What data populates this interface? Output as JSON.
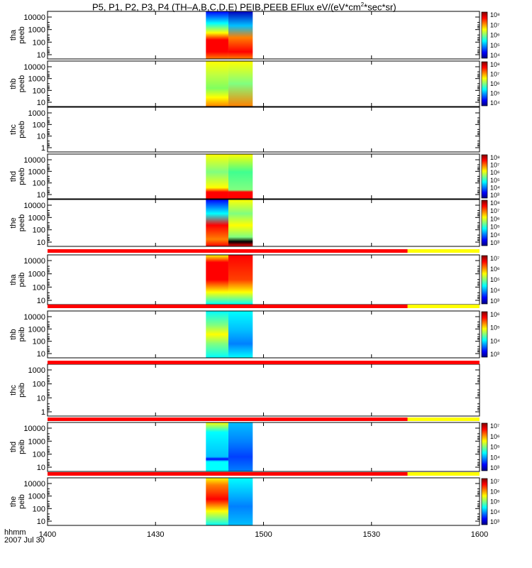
{
  "title": "P5, P1, P2, P3, P4  (TH–A,B,C,D,E)  PEIB,PEEB EFlux  eV/(eV*cm",
  "title_sup": "2",
  "title_tail": "*sec*sr)",
  "footer": {
    "time_label": "hhmm",
    "date_label": "2007 Jul 30"
  },
  "chart_data": {
    "type": "heatmap",
    "x_ticks": [
      "1400",
      "1430",
      "1500",
      "1530",
      "1600"
    ],
    "x_range_minutes": [
      0,
      120
    ],
    "data_interval_minutes": [
      44,
      57
    ],
    "panels": [
      {
        "name": "peeb",
        "probe": "tha",
        "ylabel_top": "tha",
        "ylabel_bottom": "peeb",
        "yticks": [
          "10000",
          "1000",
          "100",
          "10"
        ],
        "cbar_ticks": [
          "10⁸",
          "10⁷",
          "10⁶",
          "10⁵",
          "10⁴"
        ],
        "has_data": true,
        "profile": "tha_peeb"
      },
      {
        "name": "peeb",
        "probe": "thb",
        "ylabel_top": "thb",
        "ylabel_bottom": "peeb",
        "yticks": [
          "10000",
          "1000",
          "100",
          "10"
        ],
        "cbar_ticks": [
          "10⁸",
          "10⁷",
          "10⁶",
          "10⁵",
          "10⁴"
        ],
        "has_data": true,
        "profile": "thb_peeb"
      },
      {
        "name": "peeb",
        "probe": "thc",
        "ylabel_top": "thc",
        "ylabel_bottom": "peeb",
        "yticks": [
          "1000",
          "100",
          "10",
          "1"
        ],
        "cbar_ticks": [],
        "has_data": false,
        "profile": "none"
      },
      {
        "name": "peeb",
        "probe": "thd",
        "ylabel_top": "thd",
        "ylabel_bottom": "peeb",
        "yticks": [
          "10000",
          "1000",
          "100",
          "10"
        ],
        "cbar_ticks": [
          "10⁸",
          "10⁷",
          "10⁶",
          "10⁵",
          "10⁴",
          "10³"
        ],
        "has_data": true,
        "profile": "thd_peeb"
      },
      {
        "name": "peeb",
        "probe": "the",
        "ylabel_top": "the",
        "ylabel_bottom": "peeb",
        "yticks": [
          "10000",
          "1000",
          "100",
          "10"
        ],
        "cbar_ticks": [
          "10⁸",
          "10⁷",
          "10⁶",
          "10⁵",
          "10⁴",
          "10³"
        ],
        "has_data": true,
        "profile": "the_peeb"
      },
      {
        "name": "peib",
        "probe": "tha",
        "ylabel_top": "tha",
        "ylabel_bottom": "peib",
        "yticks": [
          "10000",
          "1000",
          "100",
          "10"
        ],
        "cbar_ticks": [
          "10⁷",
          "10⁶",
          "10⁵",
          "10⁴",
          "10³"
        ],
        "has_data": true,
        "profile": "tha_peib"
      },
      {
        "name": "peib",
        "probe": "thb",
        "ylabel_top": "thb",
        "ylabel_bottom": "peib",
        "yticks": [
          "10000",
          "1000",
          "100",
          "10"
        ],
        "cbar_ticks": [
          "10⁶",
          "10⁵",
          "10⁴",
          "10³"
        ],
        "has_data": true,
        "profile": "thb_peib"
      },
      {
        "name": "peib",
        "probe": "thc",
        "ylabel_top": "thc",
        "ylabel_bottom": "peib",
        "yticks": [
          "1000",
          "100",
          "10",
          "1"
        ],
        "cbar_ticks": [],
        "has_data": false,
        "profile": "none"
      },
      {
        "name": "peib",
        "probe": "thd",
        "ylabel_top": "thd",
        "ylabel_bottom": "peib",
        "yticks": [
          "10000",
          "1000",
          "100",
          "10"
        ],
        "cbar_ticks": [
          "10⁷",
          "10⁶",
          "10⁵",
          "10⁴",
          "10³"
        ],
        "has_data": true,
        "profile": "thd_peib"
      },
      {
        "name": "peib",
        "probe": "the",
        "ylabel_top": "the",
        "ylabel_bottom": "peib",
        "yticks": [
          "10000",
          "1000",
          "100",
          "10"
        ],
        "cbar_ticks": [
          "10⁷",
          "10⁶",
          "10⁵",
          "10⁴",
          "10³"
        ],
        "has_data": true,
        "profile": "the_peib"
      }
    ],
    "mode_bars": [
      {
        "after_panel": 4,
        "segments": [
          {
            "from": 0,
            "to": 100,
            "color": "#ff0000"
          },
          {
            "from": 100,
            "to": 120,
            "color": "#ffff00"
          }
        ]
      },
      {
        "after_panel": 5,
        "segments": [
          {
            "from": 0,
            "to": 100,
            "color": "#ff0000"
          },
          {
            "from": 100,
            "to": 120,
            "color": "#ffff00"
          }
        ]
      },
      {
        "after_panel": 6,
        "segments": [
          {
            "from": 0,
            "to": 120,
            "color": "#ff0000"
          }
        ]
      },
      {
        "after_panel": 7,
        "segments": [
          {
            "from": 0,
            "to": 100,
            "color": "#ff0000"
          },
          {
            "from": 100,
            "to": 120,
            "color": "#ffff00"
          }
        ]
      },
      {
        "after_panel": 8,
        "segments": [
          {
            "from": 0,
            "to": 100,
            "color": "#ff0000"
          },
          {
            "from": 100,
            "to": 120,
            "color": "#ffff00"
          }
        ]
      }
    ],
    "colormap": [
      "#000080",
      "#0000ff",
      "#0080ff",
      "#00ffff",
      "#80ff80",
      "#ffff00",
      "#ff8000",
      "#ff0000",
      "#800000"
    ]
  }
}
